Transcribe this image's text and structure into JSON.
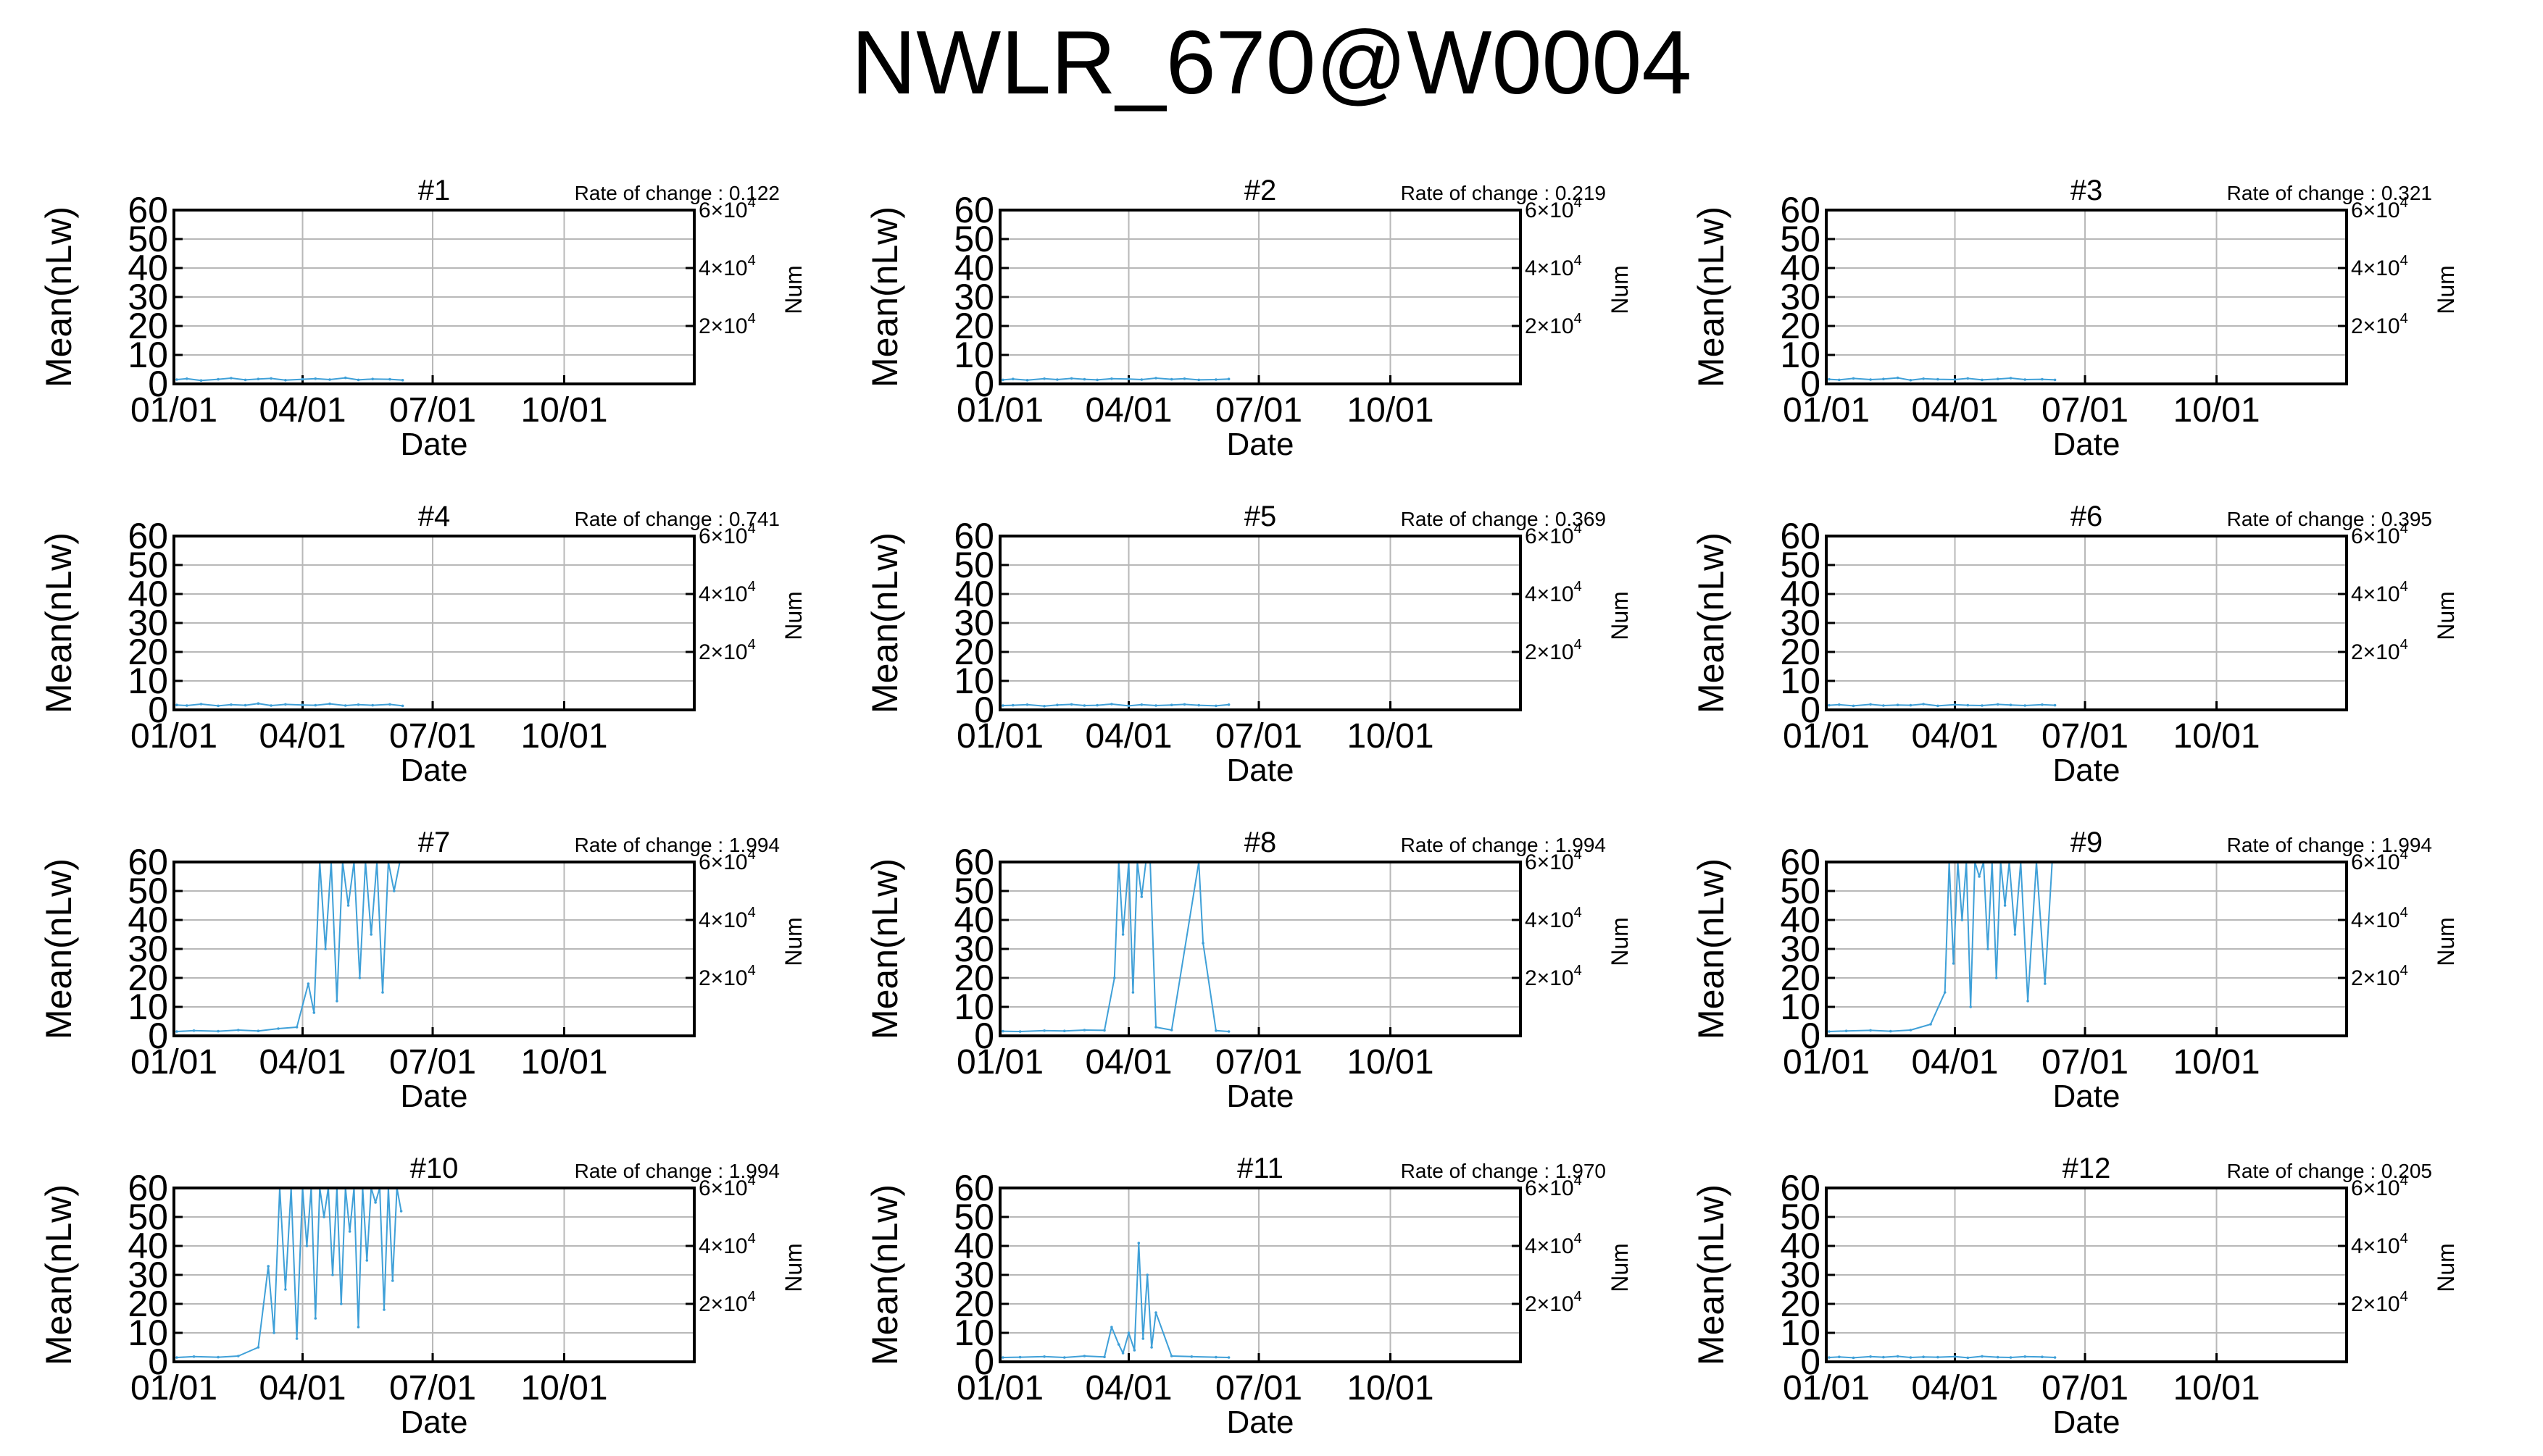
{
  "title": "NWLR_670@W0004",
  "axes": {
    "xlabel": "Date",
    "ylabel": "Mean(nLw)",
    "y2label": "Num",
    "rate_prefix": "Rate of change : ",
    "x_ticks": [
      "01/01",
      "04/01",
      "07/01",
      "10/01"
    ],
    "y_ticks": [
      "0",
      "10",
      "20",
      "30",
      "40",
      "50",
      "60"
    ],
    "y2_ticks": [
      {
        "base": "2×10",
        "exp": "4"
      },
      {
        "base": "4×10",
        "exp": "4"
      },
      {
        "base": "6×10",
        "exp": "4"
      }
    ]
  },
  "colors": {
    "series": "#3fa0d8",
    "frame": "#000000",
    "grid": "#b8b8b8"
  },
  "chart_data": [
    {
      "type": "line",
      "title": "#1",
      "rate_of_change": "0.122",
      "xlabel": "Date",
      "ylabel": "Mean(nLw)",
      "y2label": "Num",
      "ylim": [
        0,
        60
      ],
      "y2lim": [
        0,
        60000
      ],
      "x_day_range": [
        1,
        365
      ],
      "grid": true,
      "x": [
        "01/03",
        "01/10",
        "01/20",
        "02/01",
        "02/10",
        "02/20",
        "03/01",
        "03/10",
        "03/20",
        "04/01",
        "04/10",
        "04/20",
        "05/01",
        "05/10",
        "05/20",
        "06/01",
        "06/10"
      ],
      "values": [
        1.5,
        1.8,
        1.2,
        1.6,
        2.0,
        1.4,
        1.7,
        1.9,
        1.3,
        1.6,
        1.8,
        1.5,
        2.1,
        1.4,
        1.7,
        1.6,
        1.3
      ]
    },
    {
      "type": "line",
      "title": "#2",
      "rate_of_change": "0.219",
      "xlabel": "Date",
      "ylabel": "Mean(nLw)",
      "y2label": "Num",
      "ylim": [
        0,
        60
      ],
      "y2lim": [
        0,
        60000
      ],
      "x_day_range": [
        1,
        365
      ],
      "grid": true,
      "x": [
        "01/03",
        "01/10",
        "01/20",
        "02/01",
        "02/10",
        "02/20",
        "03/01",
        "03/10",
        "03/20",
        "04/01",
        "04/10",
        "04/20",
        "05/01",
        "05/10",
        "05/20",
        "06/01",
        "06/10"
      ],
      "values": [
        1.4,
        1.7,
        1.3,
        1.8,
        1.5,
        1.9,
        1.6,
        1.4,
        1.8,
        1.7,
        1.5,
        2.0,
        1.6,
        1.8,
        1.4,
        1.5,
        1.7
      ]
    },
    {
      "type": "line",
      "title": "#3",
      "rate_of_change": "0.321",
      "xlabel": "Date",
      "ylabel": "Mean(nLw)",
      "y2label": "Num",
      "ylim": [
        0,
        60
      ],
      "y2lim": [
        0,
        60000
      ],
      "x_day_range": [
        1,
        365
      ],
      "grid": true,
      "x": [
        "01/03",
        "01/10",
        "01/20",
        "02/01",
        "02/10",
        "02/20",
        "03/01",
        "03/10",
        "03/20",
        "04/01",
        "04/10",
        "04/20",
        "05/01",
        "05/10",
        "05/20",
        "06/01",
        "06/10"
      ],
      "values": [
        1.6,
        1.4,
        1.9,
        1.5,
        1.7,
        2.1,
        1.3,
        1.8,
        1.6,
        1.5,
        1.9,
        1.4,
        1.7,
        2.0,
        1.5,
        1.6,
        1.4
      ]
    },
    {
      "type": "line",
      "title": "#4",
      "rate_of_change": "0.741",
      "xlabel": "Date",
      "ylabel": "Mean(nLw)",
      "y2label": "Num",
      "ylim": [
        0,
        60
      ],
      "y2lim": [
        0,
        60000
      ],
      "x_day_range": [
        1,
        365
      ],
      "grid": true,
      "x": [
        "01/03",
        "01/10",
        "01/20",
        "02/01",
        "02/10",
        "02/20",
        "03/01",
        "03/10",
        "03/20",
        "04/01",
        "04/10",
        "04/20",
        "05/01",
        "05/10",
        "05/20",
        "06/01",
        "06/10"
      ],
      "values": [
        1.7,
        1.5,
        2.0,
        1.4,
        1.8,
        1.6,
        2.2,
        1.5,
        1.9,
        1.7,
        1.6,
        2.1,
        1.5,
        1.8,
        1.6,
        1.9,
        1.4
      ]
    },
    {
      "type": "line",
      "title": "#5",
      "rate_of_change": "0.369",
      "xlabel": "Date",
      "ylabel": "Mean(nLw)",
      "y2label": "Num",
      "ylim": [
        0,
        60
      ],
      "y2lim": [
        0,
        60000
      ],
      "x_day_range": [
        1,
        365
      ],
      "grid": true,
      "x": [
        "01/03",
        "01/10",
        "01/20",
        "02/01",
        "02/10",
        "02/20",
        "03/01",
        "03/10",
        "03/20",
        "04/01",
        "04/10",
        "04/20",
        "05/01",
        "05/10",
        "05/20",
        "06/01",
        "06/10"
      ],
      "values": [
        1.5,
        1.6,
        1.8,
        1.3,
        1.7,
        1.9,
        1.5,
        1.6,
        2.0,
        1.4,
        1.8,
        1.5,
        1.7,
        1.9,
        1.6,
        1.4,
        1.8
      ]
    },
    {
      "type": "line",
      "title": "#6",
      "rate_of_change": "0.395",
      "xlabel": "Date",
      "ylabel": "Mean(nLw)",
      "y2label": "Num",
      "ylim": [
        0,
        60
      ],
      "y2lim": [
        0,
        60000
      ],
      "x_day_range": [
        1,
        365
      ],
      "grid": true,
      "x": [
        "01/03",
        "01/10",
        "01/20",
        "02/01",
        "02/10",
        "02/20",
        "03/01",
        "03/10",
        "03/20",
        "04/01",
        "04/10",
        "04/20",
        "05/01",
        "05/10",
        "05/20",
        "06/01",
        "06/10"
      ],
      "values": [
        1.6,
        1.8,
        1.4,
        1.9,
        1.5,
        1.7,
        1.6,
        2.0,
        1.4,
        1.8,
        1.6,
        1.5,
        1.9,
        1.7,
        1.5,
        1.8,
        1.6
      ]
    },
    {
      "type": "line",
      "title": "#7",
      "rate_of_change": "1.994",
      "xlabel": "Date",
      "ylabel": "Mean(nLw)",
      "y2label": "Num",
      "ylim": [
        0,
        60
      ],
      "y2lim": [
        0,
        60000
      ],
      "x_day_range": [
        1,
        365
      ],
      "grid": true,
      "x": [
        "01/03",
        "01/15",
        "02/01",
        "02/15",
        "03/01",
        "03/15",
        "03/28",
        "04/05",
        "04/09",
        "04/13",
        "04/17",
        "04/21",
        "04/25",
        "04/29",
        "05/03",
        "05/07",
        "05/11",
        "05/15",
        "05/19",
        "05/23",
        "05/27",
        "05/31",
        "06/04",
        "06/08"
      ],
      "values": [
        1.5,
        1.8,
        1.6,
        2.0,
        1.7,
        2.5,
        3.0,
        18,
        8,
        60,
        30,
        60,
        12,
        60,
        45,
        60,
        20,
        60,
        35,
        60,
        15,
        60,
        50,
        60
      ]
    },
    {
      "type": "line",
      "title": "#8",
      "rate_of_change": "1.994",
      "xlabel": "Date",
      "ylabel": "Mean(nLw)",
      "y2label": "Num",
      "ylim": [
        0,
        60
      ],
      "y2lim": [
        0,
        60000
      ],
      "x_day_range": [
        1,
        365
      ],
      "grid": true,
      "x": [
        "01/03",
        "01/15",
        "02/01",
        "02/15",
        "03/01",
        "03/15",
        "03/22",
        "03/25",
        "03/28",
        "04/01",
        "04/04",
        "04/07",
        "04/10",
        "04/13",
        "04/16",
        "04/20",
        "05/01",
        "05/20",
        "05/23",
        "06/01",
        "06/10"
      ],
      "values": [
        1.6,
        1.5,
        1.8,
        1.7,
        2.0,
        1.9,
        20,
        60,
        35,
        60,
        15,
        60,
        48,
        60,
        60,
        3,
        2.0,
        60,
        32,
        1.8,
        1.5
      ]
    },
    {
      "type": "line",
      "title": "#9",
      "rate_of_change": "1.994",
      "xlabel": "Date",
      "ylabel": "Mean(nLw)",
      "y2label": "Num",
      "ylim": [
        0,
        60
      ],
      "y2lim": [
        0,
        60000
      ],
      "x_day_range": [
        1,
        365
      ],
      "grid": true,
      "x": [
        "01/03",
        "01/15",
        "02/01",
        "02/15",
        "03/01",
        "03/15",
        "03/25",
        "03/28",
        "03/31",
        "04/03",
        "04/06",
        "04/09",
        "04/12",
        "04/15",
        "04/18",
        "04/21",
        "04/24",
        "04/27",
        "04/30",
        "05/03",
        "05/06",
        "05/09",
        "05/13",
        "05/17",
        "05/22",
        "05/28",
        "06/03",
        "06/08"
      ],
      "values": [
        1.5,
        1.7,
        1.9,
        1.6,
        2.0,
        4,
        15,
        60,
        25,
        60,
        40,
        60,
        10,
        60,
        55,
        60,
        30,
        60,
        20,
        60,
        45,
        60,
        35,
        60,
        12,
        60,
        18,
        60
      ]
    },
    {
      "type": "line",
      "title": "#10",
      "rate_of_change": "1.994",
      "xlabel": "Date",
      "ylabel": "Mean(nLw)",
      "y2label": "Num",
      "ylim": [
        0,
        60
      ],
      "y2lim": [
        0,
        60000
      ],
      "x_day_range": [
        1,
        365
      ],
      "grid": true,
      "x": [
        "01/03",
        "01/15",
        "02/01",
        "02/15",
        "03/01",
        "03/08",
        "03/12",
        "03/16",
        "03/20",
        "03/24",
        "03/28",
        "04/01",
        "04/04",
        "04/07",
        "04/10",
        "04/13",
        "04/16",
        "04/19",
        "04/22",
        "04/25",
        "04/28",
        "05/01",
        "05/04",
        "05/07",
        "05/10",
        "05/13",
        "05/16",
        "05/19",
        "05/22",
        "05/25",
        "05/28",
        "05/31",
        "06/03",
        "06/06",
        "06/09"
      ],
      "values": [
        1.5,
        1.8,
        1.6,
        2.0,
        5,
        33,
        10,
        60,
        25,
        60,
        8,
        60,
        40,
        60,
        15,
        60,
        50,
        60,
        30,
        60,
        20,
        60,
        45,
        60,
        12,
        60,
        35,
        60,
        55,
        60,
        18,
        60,
        28,
        60,
        52
      ]
    },
    {
      "type": "line",
      "title": "#11",
      "rate_of_change": "1.970",
      "xlabel": "Date",
      "ylabel": "Mean(nLw)",
      "y2label": "Num",
      "ylim": [
        0,
        60
      ],
      "y2lim": [
        0,
        60000
      ],
      "x_day_range": [
        1,
        365
      ],
      "grid": true,
      "x": [
        "01/03",
        "01/15",
        "02/01",
        "02/15",
        "03/01",
        "03/15",
        "03/20",
        "03/25",
        "03/28",
        "04/01",
        "04/05",
        "04/08",
        "04/11",
        "04/14",
        "04/17",
        "04/20",
        "05/01",
        "05/15",
        "06/01",
        "06/10"
      ],
      "values": [
        1.5,
        1.6,
        1.8,
        1.5,
        2.0,
        1.7,
        12,
        6,
        3,
        10,
        4,
        41,
        8,
        30,
        5,
        17,
        2.0,
        1.8,
        1.6,
        1.5
      ]
    },
    {
      "type": "line",
      "title": "#12",
      "rate_of_change": "0.205",
      "xlabel": "Date",
      "ylabel": "Mean(nLw)",
      "y2label": "Num",
      "ylim": [
        0,
        60
      ],
      "y2lim": [
        0,
        60000
      ],
      "x_day_range": [
        1,
        365
      ],
      "grid": true,
      "x": [
        "01/03",
        "01/10",
        "01/20",
        "02/01",
        "02/10",
        "02/20",
        "03/01",
        "03/10",
        "03/20",
        "04/01",
        "04/10",
        "04/20",
        "05/01",
        "05/10",
        "05/20",
        "06/01",
        "06/10"
      ],
      "values": [
        1.5,
        1.7,
        1.4,
        1.8,
        1.6,
        1.9,
        1.5,
        1.7,
        1.6,
        1.8,
        1.4,
        1.9,
        1.6,
        1.5,
        1.8,
        1.7,
        1.5
      ]
    }
  ]
}
